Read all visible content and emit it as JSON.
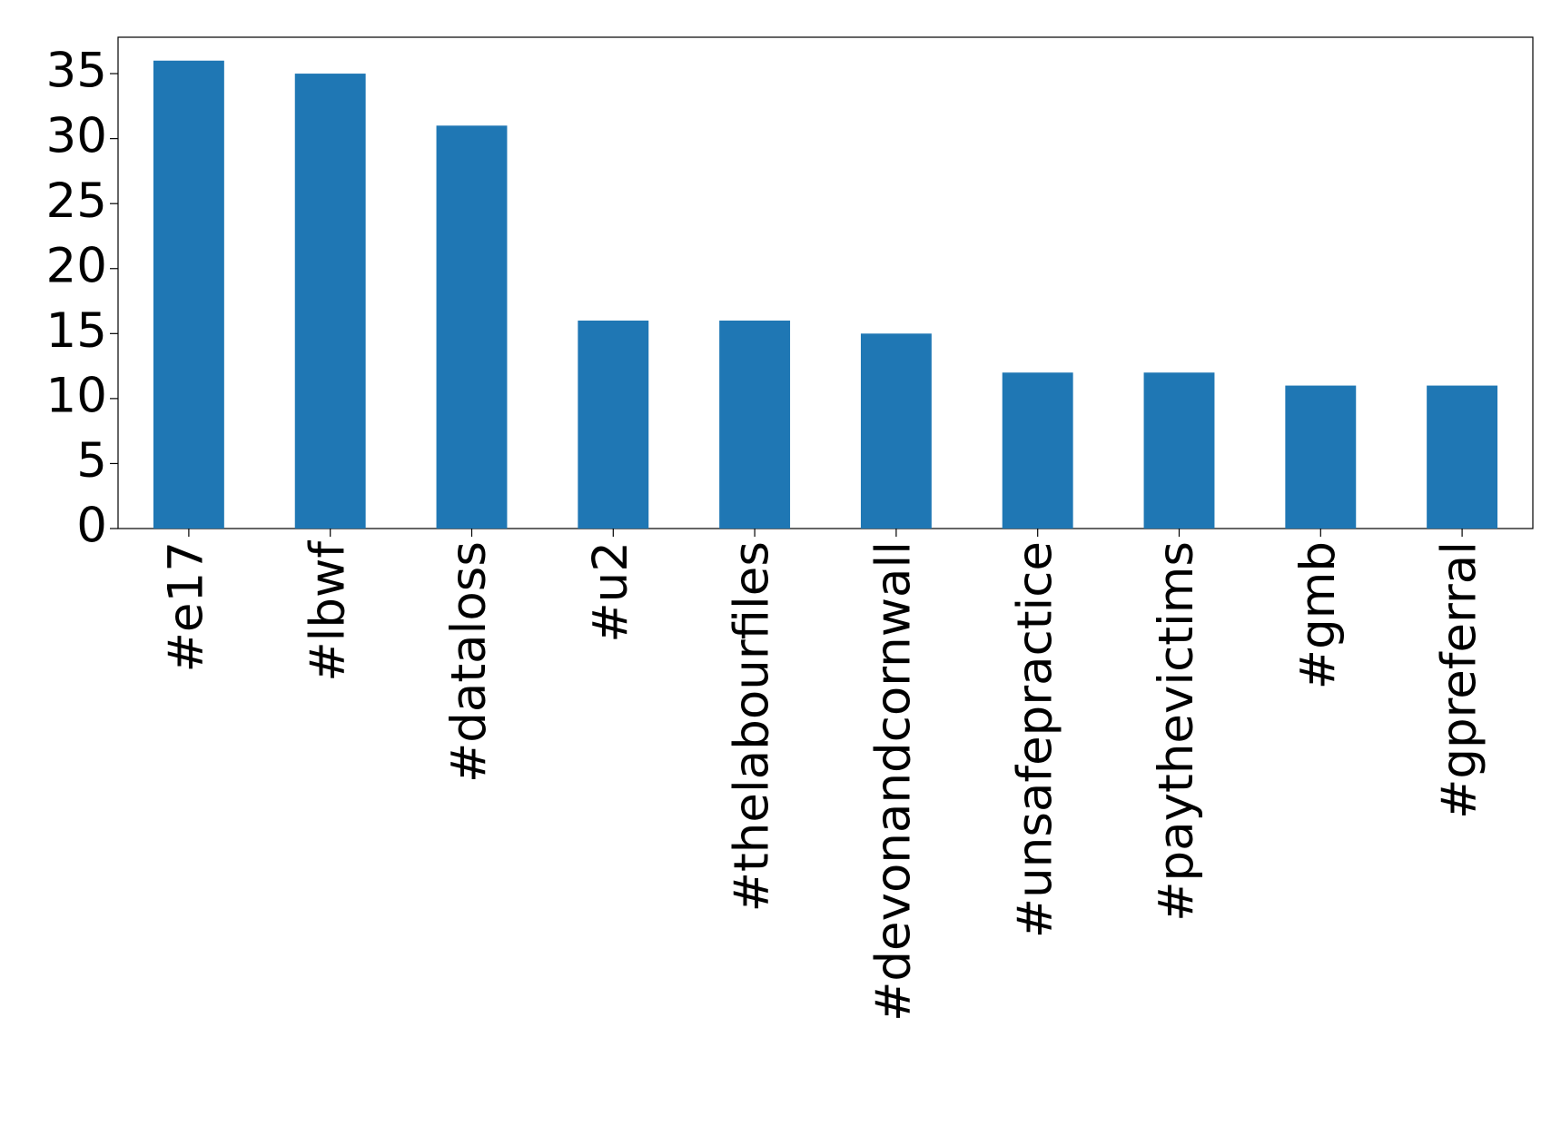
{
  "chart_data": {
    "type": "bar",
    "categories": [
      "#e17",
      "#lbwf",
      "#dataloss",
      "#u2",
      "#thelabourfiles",
      "#devonandcornwall",
      "#unsafepractice",
      "#paythevictims",
      "#gmb",
      "#gpreferral"
    ],
    "values": [
      36,
      35,
      31,
      16,
      16,
      15,
      12,
      12,
      11,
      11
    ],
    "color": "#1f77b4",
    "ylim": [
      0,
      37.8
    ],
    "yticks": [
      0,
      5,
      10,
      15,
      20,
      25,
      30,
      35
    ],
    "grid": false
  }
}
